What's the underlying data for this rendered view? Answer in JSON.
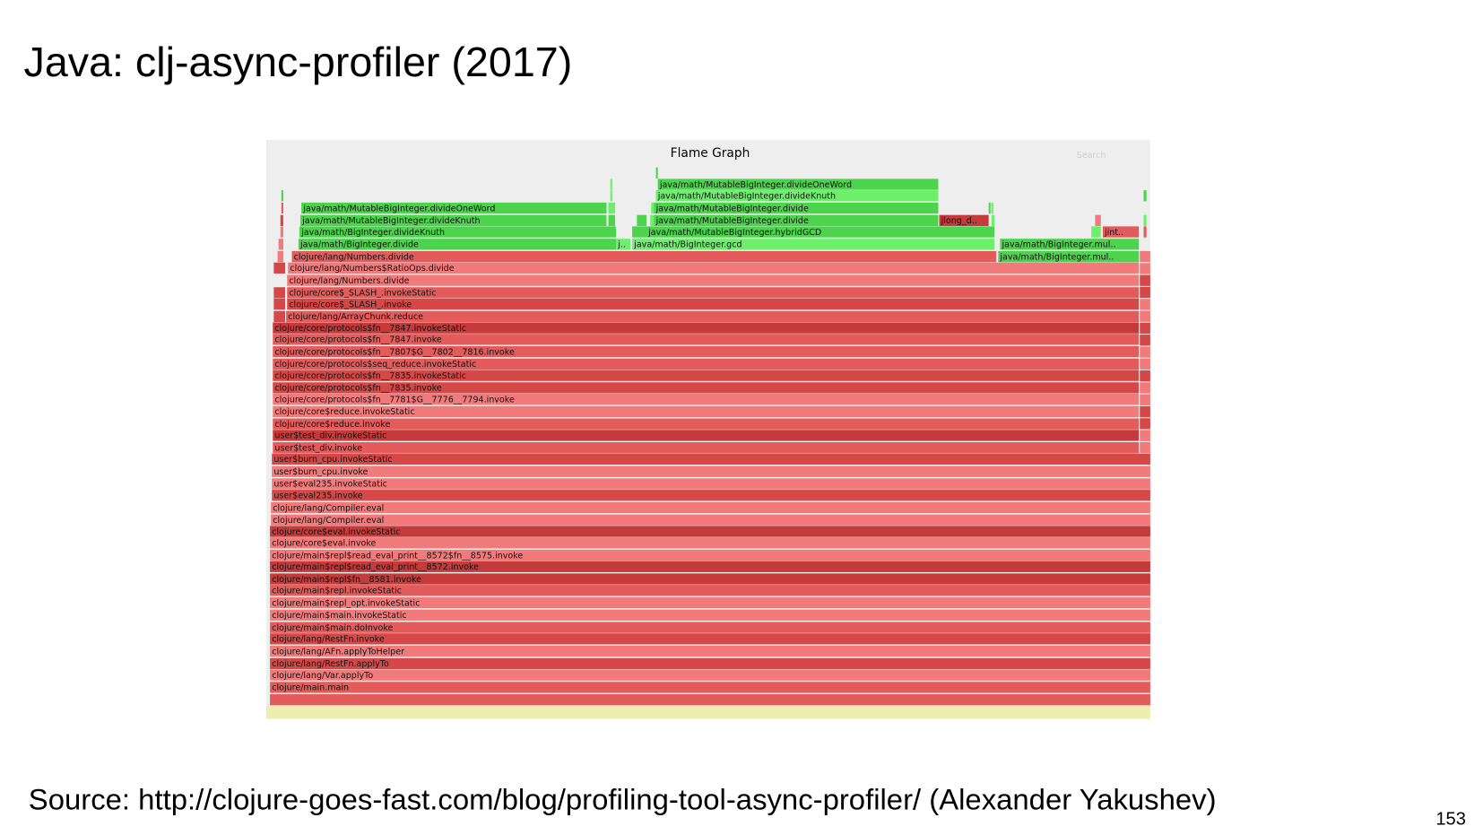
{
  "title": "Java: clj-async-profiler (2017)",
  "flame_graph": {
    "title": "Flame Graph",
    "search": "Search",
    "frames": [
      "clojure/main.main",
      "clojure/lang/Var.applyTo",
      "clojure/lang/RestFn.applyTo",
      "clojure/lang/AFn.applyToHelper",
      "clojure/lang/RestFn.invoke",
      "clojure/main$main.doInvoke",
      "clojure/main$main.invokeStatic",
      "clojure/main$repl_opt.invokeStatic",
      "clojure/main$repl.invokeStatic",
      "clojure/main$repl$fn__8581.invoke",
      "clojure/main$repl$read_eval_print__8572.invoke",
      "clojure/main$repl$read_eval_print__8572$fn__8575.invoke",
      "clojure/core$eval.invoke",
      "clojure/core$eval.invokeStatic",
      "clojure/lang/Compiler.eval",
      "clojure/lang/Compiler.eval",
      "user$eval235.invoke",
      "user$eval235.invokeStatic",
      "user$burn_cpu.invoke",
      "user$burn_cpu.invokeStatic",
      "user$test_div.invoke",
      "user$test_div.invokeStatic",
      "clojure/core$reduce.invoke",
      "clojure/core$reduce.invokeStatic",
      "clojure/core/protocols$fn__7781$G__7776__7794.invoke",
      "clojure/core/protocols$fn__7835.invoke",
      "clojure/core/protocols$fn__7835.invokeStatic",
      "clojure/core/protocols$seq_reduce.invokeStatic",
      "clojure/core/protocols$fn__7807$G__7802__7816.invoke",
      "clojure/core/protocols$fn__7847.invoke",
      "clojure/core/protocols$fn__7847.invokeStatic",
      "clojure/lang/ArrayChunk.reduce",
      "clojure/core$_SLASH_.invoke",
      "clojure/core$_SLASH_.invokeStatic",
      "clojure/lang/Numbers.divide",
      "clojure/lang/Numbers$RatioOps.divide",
      "clojure/lang/Numbers.divide",
      "java/math/BigInteger.mul..",
      "java/math/BigInteger.divide",
      "j..",
      "java/math/BigInteger.gcd",
      "java/math/BigInteger.mul..",
      "java/math/BigInteger.divideKnuth",
      "java/math/MutableBigInteger.hybridGCD",
      "jint..",
      "java/math/MutableBigInteger.divideKnuth",
      "java/math/MutableBigInteger.divide",
      "jlong_d..",
      "java/math/MutableBigInteger.divideOneWord",
      "java/math/MutableBigInteger.divide",
      "java/math/MutableBigInteger.divideKnuth",
      "java/math/MutableBigInteger.divideOneWord"
    ]
  },
  "source": "Source: http://clojure-goes-fast.com/blog/profiling-tool-async-profiler/ (Alexander Yakushev)",
  "page_number": "153"
}
